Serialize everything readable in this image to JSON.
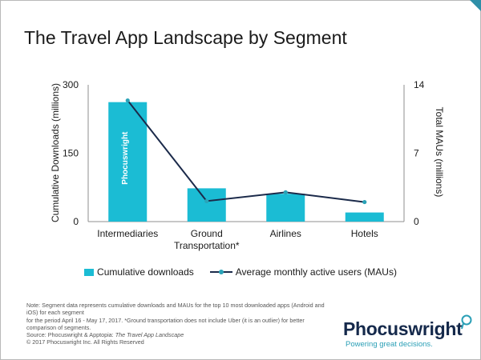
{
  "title": "The Travel App Landscape by Segment",
  "colors": {
    "bar": "#1bbcd4",
    "line": "#1b2a4a",
    "marker": "#2aa3b8",
    "axis": "#8f8f8f",
    "brand_navy": "#15294b",
    "brand_teal": "#2a9fb6"
  },
  "chart_data": {
    "type": "bar",
    "categories": [
      "Intermediaries",
      "Ground Transportation*",
      "Airlines",
      "Hotels"
    ],
    "category_lines": [
      [
        "Intermediaries"
      ],
      [
        "Ground",
        "Transportation*"
      ],
      [
        "Airlines"
      ],
      [
        "Hotels"
      ]
    ],
    "series": [
      {
        "name": "Cumulative downloads",
        "type": "bar",
        "axis": "left",
        "values": [
          262,
          73,
          61,
          20
        ]
      },
      {
        "name": "Average monthly active users (MAUs)",
        "type": "line",
        "axis": "right",
        "values": [
          12.4,
          2.1,
          3.0,
          2.0
        ]
      }
    ],
    "ylabel": "Cumulative Downloads (millions)",
    "y2label": "Total MAUs (millions)",
    "ylim": [
      0,
      300
    ],
    "y2lim": [
      0,
      14
    ],
    "yticks": [
      0,
      150,
      300
    ],
    "y2ticks": [
      0,
      7,
      14
    ],
    "grid": false,
    "legend_position": "bottom",
    "watermark": "Phocuswright"
  },
  "note": {
    "line1": "Note: Segment data represents cumulative downloads and MAUs for the top 10 most downloaded apps (Android and iOS) for each segment",
    "line2": "for the period April 16 - May 17, 2017. *Ground transportation does not include Uber (it is an outlier) for better comparison of segments.",
    "source_prefix": "Source: Phocuswright & Apptopia: ",
    "source_title": "The Travel App Landscape",
    "copyright": "© 2017 Phocuswright Inc. All Rights Reserved"
  },
  "brand": {
    "name": "Phocuswright",
    "tagline": "Powering great decisions."
  }
}
